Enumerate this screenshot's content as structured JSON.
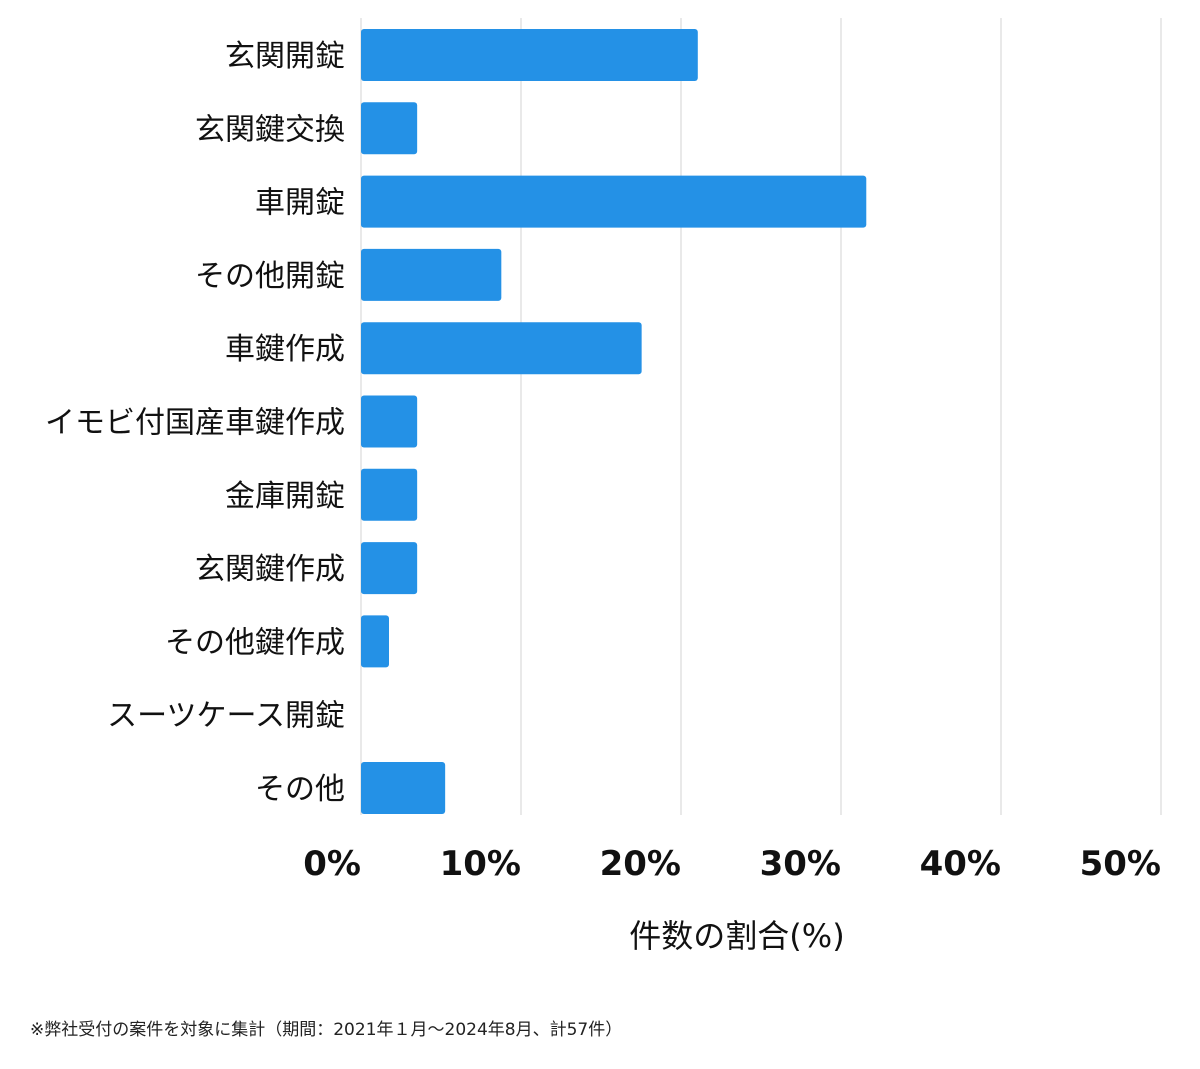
{
  "chart_data": {
    "type": "bar",
    "orientation": "horizontal",
    "categories": [
      "玄関開錠",
      "玄関鍵交換",
      "車開錠",
      "その他開錠",
      "車鍵作成",
      "イモビ付国産車鍵作成",
      "金庫開錠",
      "玄関鍵作成",
      "その他鍵作成",
      "スーツケース開錠",
      "その他"
    ],
    "values": [
      21.05,
      3.51,
      31.58,
      8.77,
      17.54,
      3.51,
      3.51,
      3.51,
      1.75,
      0,
      5.26
    ],
    "xlabel": "件数の割合(%)",
    "ylabel": "",
    "xlim": [
      0,
      50
    ],
    "xticks": [
      "0%",
      "10%",
      "20%",
      "30%",
      "40%",
      "50%"
    ],
    "grid": true,
    "bar_color": "#2491e6"
  },
  "footnote": "※弊社受付の案件を対象に集計（期間：2021年１月～2024年8月、計57件）"
}
